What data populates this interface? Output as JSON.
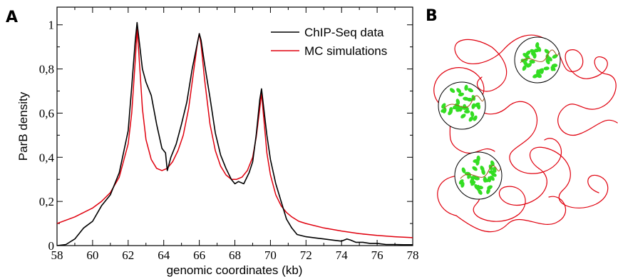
{
  "panels": {
    "a_label": "A",
    "b_label": "B"
  },
  "chart_data": {
    "type": "line",
    "xlabel": "genomic coordinates (kb)",
    "ylabel": "ParB density",
    "xlim": [
      58,
      78
    ],
    "ylim": [
      0,
      1.08
    ],
    "x_ticks": [
      58,
      60,
      62,
      64,
      66,
      68,
      70,
      72,
      74,
      76,
      78
    ],
    "x_tick_labels": [
      "58",
      "60",
      "62",
      "64",
      "66",
      "68",
      "70",
      "72",
      "74",
      "76",
      "78"
    ],
    "y_ticks": [
      0,
      0.2,
      0.4,
      0.6,
      0.8,
      1.0
    ],
    "y_tick_labels": [
      "0",
      "0,2",
      "0,4",
      "0,6",
      "0,8",
      "1"
    ],
    "grid": false,
    "legend_position": "top-right",
    "series": [
      {
        "name": "ChIP-Seq data",
        "color": "#000000",
        "x": [
          58.0,
          58.5,
          59.0,
          59.5,
          60.0,
          60.5,
          61.0,
          61.5,
          62.0,
          62.2,
          62.4,
          62.5,
          62.6,
          62.8,
          63.0,
          63.3,
          63.6,
          63.9,
          64.1,
          64.2,
          64.4,
          64.7,
          65.0,
          65.3,
          65.6,
          65.9,
          66.0,
          66.1,
          66.3,
          66.6,
          66.9,
          67.2,
          67.5,
          67.8,
          68.0,
          68.2,
          68.5,
          68.8,
          69.0,
          69.2,
          69.4,
          69.5,
          69.6,
          69.8,
          70.0,
          70.3,
          70.6,
          70.9,
          71.2,
          71.5,
          72.0,
          72.5,
          73.0,
          73.5,
          74.0,
          74.3,
          74.5,
          74.8,
          75.2,
          75.6,
          76.0,
          76.5,
          77.0,
          77.5,
          78.0
        ],
        "y": [
          0.0,
          0.005,
          0.03,
          0.08,
          0.11,
          0.18,
          0.23,
          0.33,
          0.52,
          0.72,
          0.93,
          1.01,
          0.94,
          0.8,
          0.74,
          0.68,
          0.55,
          0.44,
          0.42,
          0.34,
          0.4,
          0.46,
          0.55,
          0.65,
          0.8,
          0.92,
          0.96,
          0.93,
          0.82,
          0.67,
          0.51,
          0.41,
          0.35,
          0.3,
          0.28,
          0.29,
          0.28,
          0.33,
          0.38,
          0.5,
          0.66,
          0.71,
          0.64,
          0.5,
          0.39,
          0.28,
          0.2,
          0.12,
          0.08,
          0.05,
          0.04,
          0.035,
          0.03,
          0.025,
          0.02,
          0.03,
          0.025,
          0.015,
          0.015,
          0.01,
          0.01,
          0.005,
          0.005,
          0.004,
          0.004
        ]
      },
      {
        "name": "MC simulations",
        "color": "#e0000e",
        "x": [
          58.0,
          59.0,
          60.0,
          60.5,
          61.0,
          61.5,
          62.0,
          62.2,
          62.4,
          62.5,
          62.6,
          62.8,
          63.0,
          63.3,
          63.6,
          63.9,
          64.2,
          64.5,
          64.8,
          65.1,
          65.4,
          65.7,
          65.9,
          66.0,
          66.1,
          66.3,
          66.6,
          66.9,
          67.2,
          67.5,
          67.8,
          68.1,
          68.4,
          68.7,
          69.0,
          69.2,
          69.4,
          69.5,
          69.6,
          69.8,
          70.0,
          70.3,
          70.6,
          70.9,
          71.2,
          71.6,
          72.0,
          73.0,
          74.0,
          75.0,
          76.0,
          77.0,
          78.0
        ],
        "y": [
          0.1,
          0.13,
          0.17,
          0.2,
          0.24,
          0.31,
          0.46,
          0.6,
          0.84,
          0.98,
          0.87,
          0.62,
          0.48,
          0.39,
          0.35,
          0.34,
          0.35,
          0.38,
          0.43,
          0.5,
          0.62,
          0.8,
          0.92,
          0.96,
          0.91,
          0.75,
          0.55,
          0.43,
          0.36,
          0.32,
          0.3,
          0.3,
          0.31,
          0.34,
          0.4,
          0.49,
          0.62,
          0.69,
          0.6,
          0.42,
          0.32,
          0.23,
          0.18,
          0.15,
          0.13,
          0.11,
          0.1,
          0.08,
          0.066,
          0.054,
          0.046,
          0.04,
          0.036
        ]
      }
    ]
  },
  "diagram": {
    "polymer_color": "#e0000e",
    "protein_color": "#33dd22",
    "cluster_outline_color": "#000000"
  }
}
